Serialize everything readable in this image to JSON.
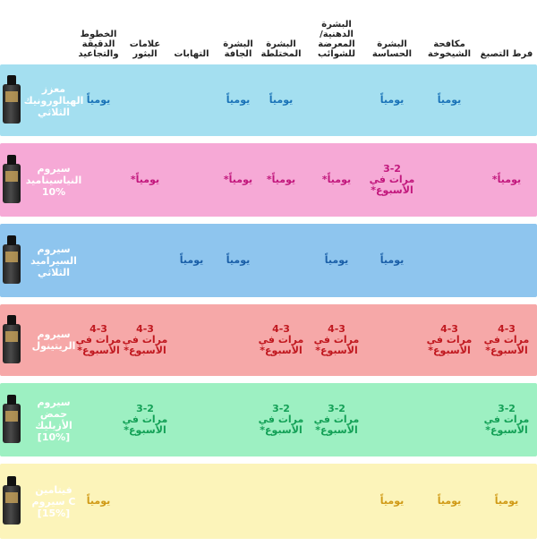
{
  "columns": [
    "فرط التصبغ",
    "مكافحة\nالشيخوخة",
    "البشرة\nالحساسة",
    "البشرة\nالدهنية/\nالمعرضة\nللشوائب",
    "البشرة\nالمختلطة",
    "البشرة\nالجافة",
    "التهابات",
    "علامات\nالبثور",
    "الخطوط\nالدقيقة\nوالتجاعيد"
  ],
  "rows": [
    {
      "label": "معزز\nالهيالورونيك\nالثلاثي",
      "color": "#a4dff0",
      "text_color": "#1a73b8",
      "cells": [
        "",
        "يومياً",
        "يومياً",
        "",
        "يومياً",
        "يومياً",
        "",
        "",
        "يومياً"
      ]
    },
    {
      "label": "سيروم\nالنياسيناميد\n10%",
      "color": "#f6a9d6",
      "text_color": "#c2187d",
      "cells": [
        "يومياً*",
        "",
        "3-2\nمرات في\nالأسبوع*",
        "يومياً*",
        "يومياً*",
        "يومياً*",
        "",
        "يومياً*",
        ""
      ]
    },
    {
      "label": "سيروم\nالسيراميد\nالثلاثي",
      "color": "#8ec5ee",
      "text_color": "#1a5fa8",
      "cells": [
        "",
        "",
        "يومياً",
        "يومياً",
        "",
        "يومياً",
        "يومياً",
        "",
        ""
      ]
    },
    {
      "label": "سيروم\nالريتينول",
      "color": "#f6a8a8",
      "text_color": "#c0181f",
      "cells": [
        "4-3\nمرات في\nالأسبوع*",
        "4-3\nمرات في\nالأسبوع*",
        "",
        "4-3\nمرات في\nالأسبوع*",
        "4-3\nمرات في\nالأسبوع*",
        "",
        "",
        "4-3\nمرات في\nالأسبوع*",
        "4-3\nمرات في\nالأسبوع*"
      ]
    },
    {
      "label": "سيروم\nحمض\nالأزيليك\n[10%]",
      "color": "#9df0c2",
      "text_color": "#13a056",
      "cells": [
        "3-2\nمرات في\nالأسبوع*",
        "",
        "",
        "3-2\nمرات في\nالأسبوع*",
        "3-2\nمرات في\nالأسبوع*",
        "",
        "",
        "3-2\nمرات في\nالأسبوع*",
        ""
      ]
    },
    {
      "label": "فيتامين\nC سيروم\n[15%]",
      "color": "#fcf4ba",
      "text_color": "#d09a17",
      "cells": [
        "يومياً",
        "يومياً",
        "يومياً",
        "",
        "",
        "",
        "",
        "",
        "يومياً"
      ]
    }
  ]
}
